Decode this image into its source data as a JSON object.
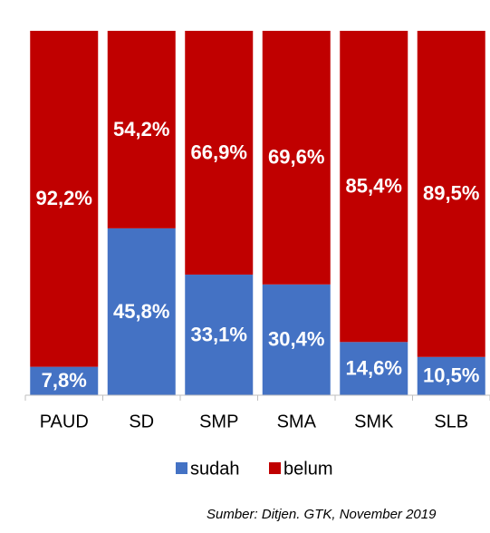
{
  "chart_data": {
    "type": "stacked_bar",
    "categories": [
      "PAUD",
      "SD",
      "SMP",
      "SMA",
      "SMK",
      "SLB"
    ],
    "series": [
      {
        "name": "sudah",
        "color": "#4472c4",
        "values": [
          7.8,
          45.8,
          33.1,
          30.4,
          14.6,
          10.5
        ],
        "value_labels": [
          "7,8%",
          "45,8%",
          "33,1%",
          "30,4%",
          "14,6%",
          "10,5%"
        ]
      },
      {
        "name": "belum",
        "color": "#c00000",
        "values": [
          92.2,
          54.2,
          66.9,
          69.6,
          85.4,
          89.5
        ],
        "value_labels": [
          "92,2%",
          "54,2%",
          "66,9%",
          "69,6%",
          "85,4%",
          "89,5%"
        ]
      }
    ],
    "ylim": [
      0,
      100
    ],
    "legend": "bottom",
    "source": "Sumber: Ditjen. GTK, November 2019"
  }
}
